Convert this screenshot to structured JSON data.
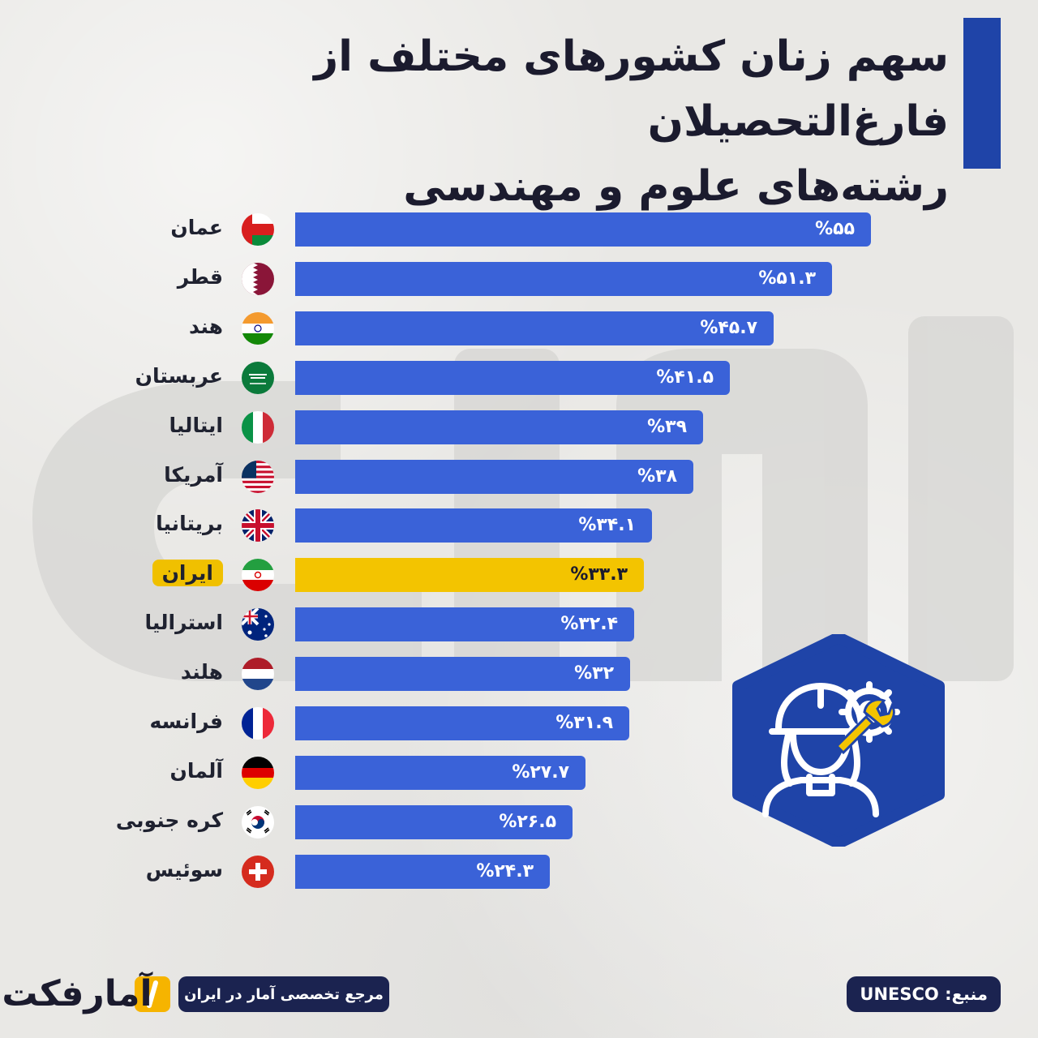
{
  "header": {
    "title_line1": "سهم زنان کشورهای مختلف از فارغ‌التحصیلان",
    "title_line2": "رشته‌های علوم و مهندسی"
  },
  "colors": {
    "bar": "#3a62d8",
    "highlight": "#f3c400",
    "title_accent": "#1f44a8",
    "dark": "#1b2350"
  },
  "chart_data": {
    "type": "bar",
    "orientation": "horizontal",
    "categories": [
      "عمان",
      "قطر",
      "هند",
      "عربستان",
      "ایتالیا",
      "آمریکا",
      "بریتانیا",
      "ایران",
      "استرالیا",
      "هلند",
      "فرانسه",
      "آلمان",
      "کره جنوبی",
      "سوئیس"
    ],
    "values": [
      55,
      51.3,
      45.7,
      41.5,
      39,
      38,
      34.1,
      33.3,
      32.4,
      32,
      31.9,
      27.7,
      26.5,
      24.3
    ],
    "value_labels": [
      "%۵۵",
      "%۵۱.۳",
      "%۴۵.۷",
      "%۴۱.۵",
      "%۳۹",
      "%۳۸",
      "%۳۴.۱",
      "%۳۳.۳",
      "%۳۲.۴",
      "%۳۲",
      "%۳۱.۹",
      "%۲۷.۷",
      "%۲۶.۵",
      "%۲۴.۳"
    ],
    "flags": [
      "oman-flag-icon",
      "qatar-flag-icon",
      "india-flag-icon",
      "saudi-flag-icon",
      "italy-flag-icon",
      "usa-flag-icon",
      "uk-flag-icon",
      "iran-flag-icon",
      "australia-flag-icon",
      "netherlands-flag-icon",
      "france-flag-icon",
      "germany-flag-icon",
      "south-korea-flag-icon",
      "switzerland-flag-icon"
    ],
    "highlight": "ایران",
    "xlim": [
      0,
      55
    ],
    "title": "سهم زنان کشورهای مختلف از فارغ‌التحصیلان رشته‌های علوم و مهندسی"
  },
  "footer": {
    "source": "منبع: UNESCO",
    "reference": "مرجع تخصصی آمار در ایران",
    "brand": "آمارفکت"
  },
  "icons": {
    "badge": "female-engineer-icon"
  }
}
